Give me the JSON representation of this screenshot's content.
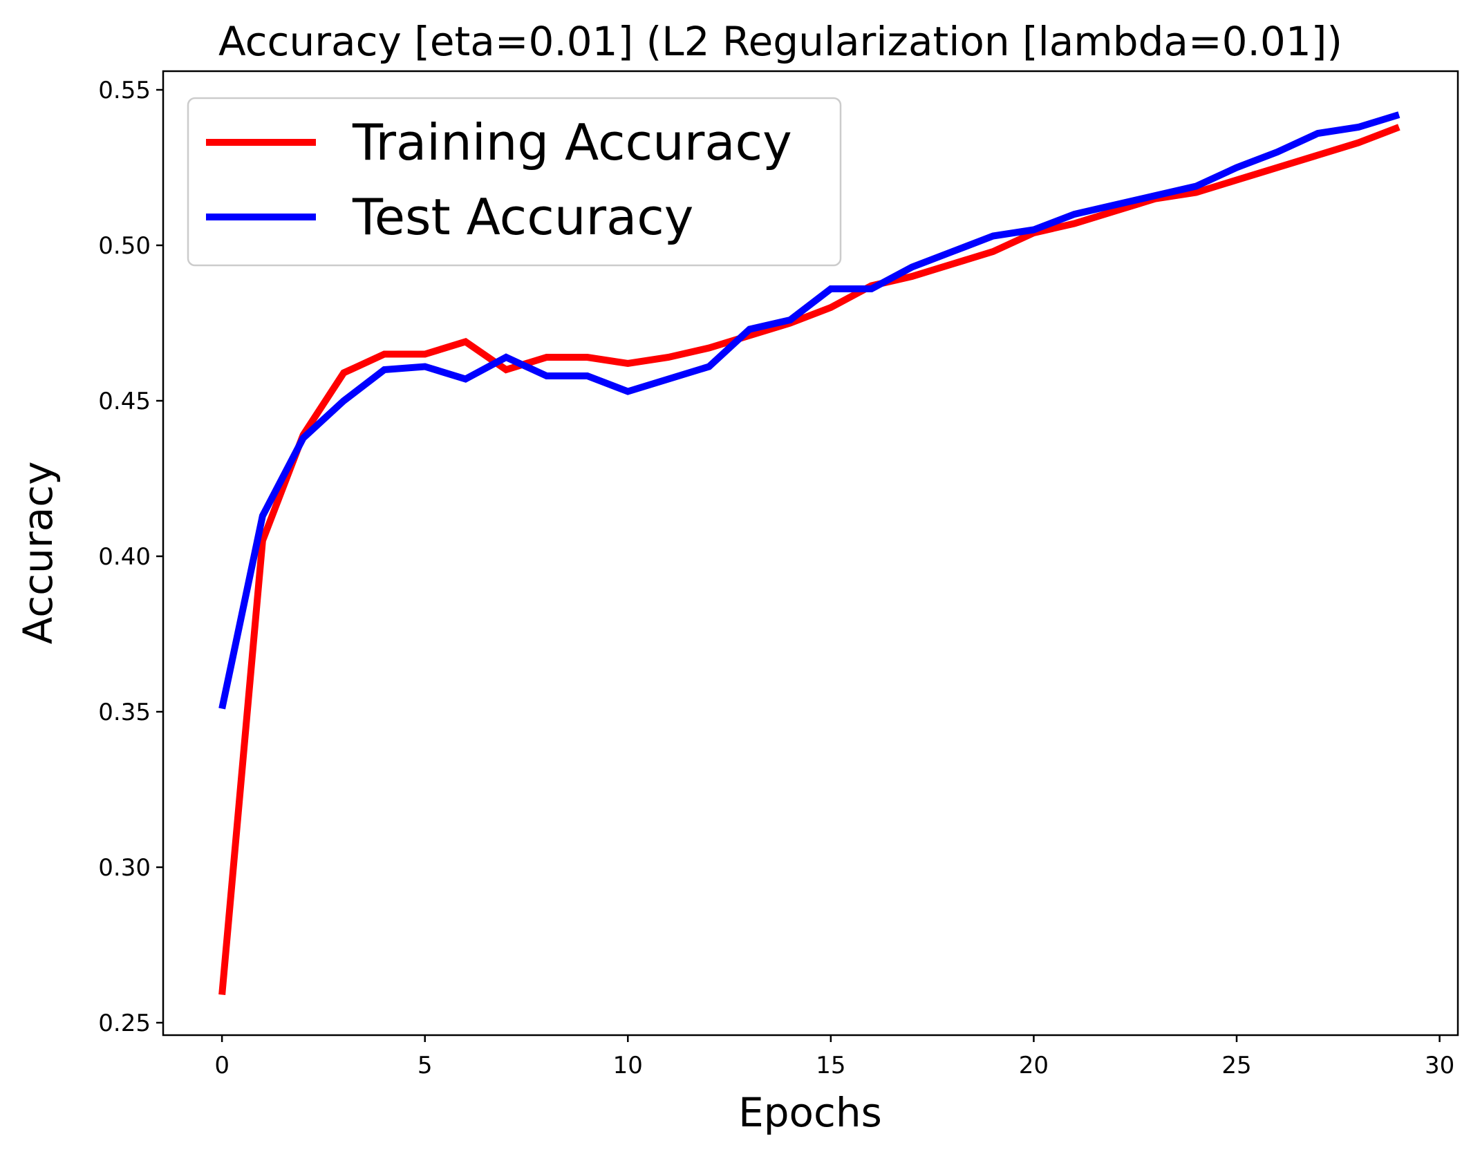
{
  "chart_data": {
    "type": "line",
    "title": "Accuracy [eta=0.01] (L2 Regularization [lambda=0.01])",
    "xlabel": "Epochs",
    "ylabel": "Accuracy",
    "xlim": [
      -1.45,
      30.45
    ],
    "ylim": [
      0.246,
      0.556
    ],
    "xticks": [
      0,
      5,
      10,
      15,
      20,
      25,
      30
    ],
    "yticks": [
      0.25,
      0.3,
      0.35,
      0.4,
      0.45,
      0.5,
      0.55
    ],
    "xtick_labels": [
      "0",
      "5",
      "10",
      "15",
      "20",
      "25",
      "30"
    ],
    "ytick_labels": [
      "0.25",
      "0.30",
      "0.35",
      "0.40",
      "0.45",
      "0.50",
      "0.55"
    ],
    "grid": false,
    "legend_position": "top-left",
    "x": [
      0,
      1,
      2,
      3,
      4,
      5,
      6,
      7,
      8,
      9,
      10,
      11,
      12,
      13,
      14,
      15,
      16,
      17,
      18,
      19,
      20,
      21,
      22,
      23,
      24,
      25,
      26,
      27,
      28,
      29
    ],
    "series": [
      {
        "name": "Training Accuracy",
        "color": "#ff0000",
        "values": [
          0.259,
          0.405,
          0.439,
          0.459,
          0.465,
          0.465,
          0.469,
          0.46,
          0.464,
          0.464,
          0.462,
          0.464,
          0.467,
          0.471,
          0.475,
          0.48,
          0.487,
          0.49,
          0.494,
          0.498,
          0.504,
          0.507,
          0.511,
          0.515,
          0.517,
          0.521,
          0.525,
          0.529,
          0.533,
          0.538
        ]
      },
      {
        "name": "Test Accuracy",
        "color": "#0000ff",
        "values": [
          0.351,
          0.413,
          0.438,
          0.45,
          0.46,
          0.461,
          0.457,
          0.464,
          0.458,
          0.458,
          0.453,
          0.457,
          0.461,
          0.473,
          0.476,
          0.486,
          0.486,
          0.493,
          0.498,
          0.503,
          0.505,
          0.51,
          0.513,
          0.516,
          0.519,
          0.525,
          0.53,
          0.536,
          0.538,
          0.542
        ]
      }
    ]
  }
}
